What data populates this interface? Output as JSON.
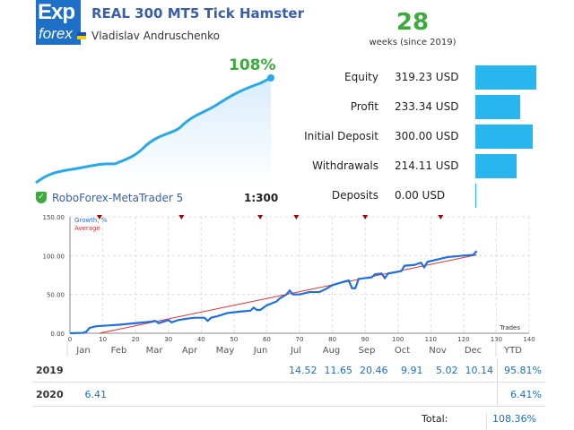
{
  "header": {
    "logo_top": "Exp",
    "logo_bottom": "forex",
    "title": "REAL 300 MT5 Tick Hamster",
    "author": "Vladislav Andruschenko",
    "weeks": "28",
    "weeks_label": "weeks (since 2019)"
  },
  "summary": {
    "growth": "108%",
    "broker": "RoboForex-MetaTrader 5",
    "leverage": "1:300"
  },
  "stats": [
    {
      "label": "Equity",
      "value": "319.23 USD",
      "amount": 319.23
    },
    {
      "label": "Profit",
      "value": "233.34 USD",
      "amount": 233.34
    },
    {
      "label": "Initial Deposit",
      "value": "300.00 USD",
      "amount": 300.0
    },
    {
      "label": "Withdrawals",
      "value": "214.11 USD",
      "amount": 214.11
    },
    {
      "label": "Deposits",
      "value": "0.00 USD",
      "amount": 0
    }
  ],
  "colors": {
    "accent": "#29b5ee",
    "growth_green": "#3daa3d",
    "growth_line": "#1e6fe0",
    "average_line": "#e03030"
  },
  "chart_data": {
    "type": "line",
    "legend": [
      "Growth, %",
      "Average"
    ],
    "xlabel": "Trades",
    "xlim": [
      0,
      140
    ],
    "ylim": [
      0,
      150
    ],
    "xticks": [
      "0",
      "10",
      "20",
      "30",
      "40",
      "50",
      "60",
      "70",
      "80",
      "90",
      "100",
      "110",
      "120",
      "130",
      "140"
    ],
    "yticks": [
      "0.00",
      "50.00",
      "100.00",
      "150.00"
    ],
    "grid": true,
    "markers_x": [
      9,
      34,
      58,
      69,
      90,
      113
    ],
    "series": [
      {
        "name": "Growth, %",
        "x": [
          0,
          4,
          5,
          6,
          8,
          15,
          20,
          25,
          26,
          27,
          30,
          31,
          33,
          36,
          38,
          41,
          42,
          43,
          45,
          48,
          52,
          55,
          56,
          57,
          58,
          60,
          63,
          64,
          66,
          67,
          68,
          70,
          73,
          76,
          78,
          80,
          84,
          85,
          86,
          87,
          88,
          92,
          93,
          95,
          96,
          97,
          101,
          102,
          105,
          107,
          108,
          109,
          112,
          115,
          120,
          123,
          124
        ],
        "y": [
          0,
          0.5,
          2,
          7,
          9,
          11,
          13,
          15,
          16,
          13,
          17,
          14,
          17,
          19,
          20,
          20,
          16,
          20,
          22,
          26,
          28,
          29,
          33,
          30,
          30,
          36,
          41,
          45,
          50,
          55,
          50,
          50,
          53,
          53,
          57,
          62,
          67,
          68,
          58,
          58,
          70,
          72,
          76,
          77,
          71,
          77,
          80,
          87,
          88,
          91,
          85,
          92,
          95,
          98,
          100,
          101,
          106
        ]
      },
      {
        "name": "Average",
        "x": [
          9,
          124
        ],
        "y": [
          0,
          101
        ]
      }
    ]
  },
  "months": [
    "Jan",
    "Feb",
    "Mar",
    "Apr",
    "May",
    "Jun",
    "Jul",
    "Aug",
    "Sep",
    "Oct",
    "Nov",
    "Dec",
    "YTD"
  ],
  "table": {
    "rows": [
      {
        "year": "2019",
        "values": [
          "",
          "",
          "",
          "",
          "",
          "",
          "14.52",
          "11.65",
          "20.46",
          "9.91",
          "5.02",
          "10.14"
        ],
        "ytd": "95.81%"
      },
      {
        "year": "2020",
        "values": [
          "6.41",
          "",
          "",
          "",
          "",
          "",
          "",
          "",
          "",
          "",
          "",
          ""
        ],
        "ytd": "6.41%"
      }
    ],
    "total_label": "Total:",
    "total": "108.36%"
  }
}
